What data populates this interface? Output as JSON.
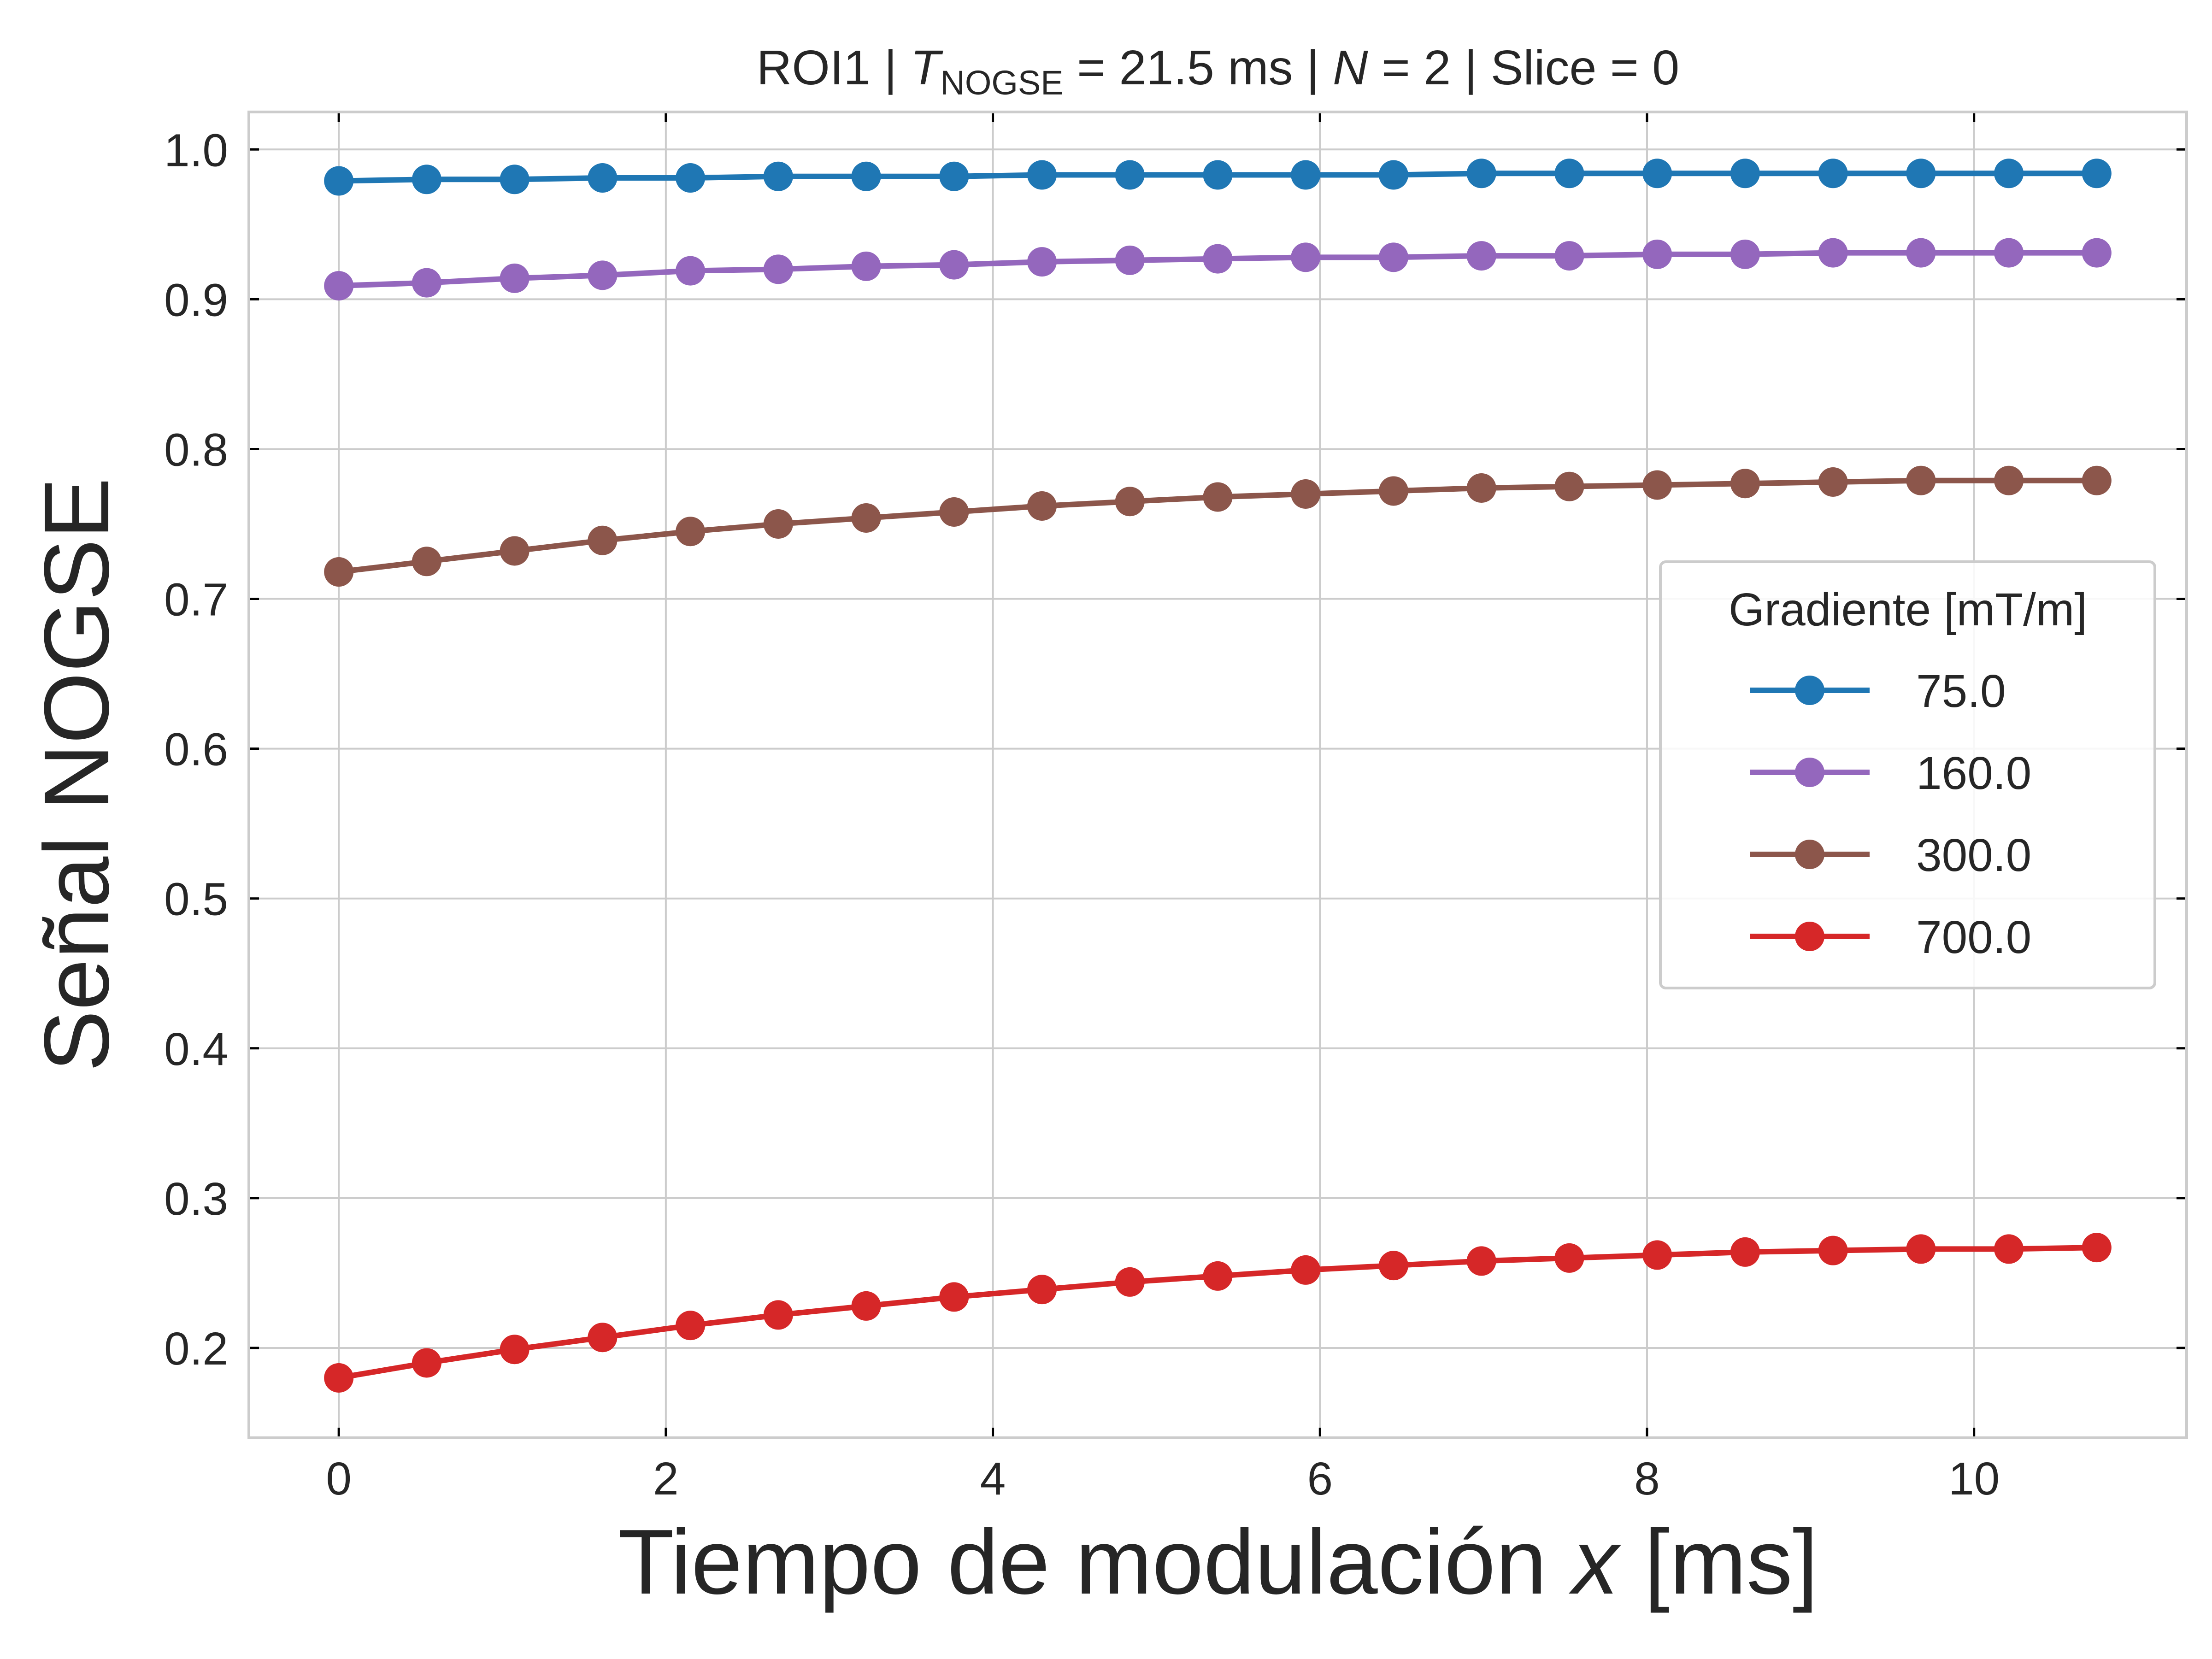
{
  "chart_data": {
    "type": "line",
    "title": {
      "prefix": "ROI1 | ",
      "t_symbol": "T",
      "t_subscript": "NOGSE",
      "t_value": " = 21.5 ms | ",
      "n_symbol": "N",
      "n_value": " = 2 | Slice = 0"
    },
    "xlabel": {
      "text": "Tiempo de modulación ",
      "var": "x",
      "unit": " [ms]"
    },
    "ylabel": "Señal NOGSE",
    "xlim": [
      -0.55,
      11.3
    ],
    "ylim": [
      0.14,
      1.025
    ],
    "xticks": [
      0,
      2,
      4,
      6,
      8,
      10
    ],
    "yticks": [
      0.2,
      0.3,
      0.4,
      0.5,
      0.6,
      0.7,
      0.8,
      0.9,
      1.0
    ],
    "ytick_labels": [
      "0.2",
      "0.3",
      "0.4",
      "0.5",
      "0.6",
      "0.7",
      "0.8",
      "0.9",
      "1.0"
    ],
    "grid": true,
    "legend": {
      "title": "Gradiente [mT/m]",
      "position": "center-right"
    },
    "x": [
      0,
      0.5375,
      1.075,
      1.6125,
      2.15,
      2.6875,
      3.225,
      3.7625,
      4.3,
      4.8375,
      5.375,
      5.9125,
      6.45,
      6.9875,
      7.525,
      8.0625,
      8.6,
      9.1375,
      9.675,
      10.2125,
      10.75
    ],
    "series": [
      {
        "name": "75.0",
        "color": "#1f77b4",
        "values": [
          0.979,
          0.98,
          0.98,
          0.981,
          0.981,
          0.982,
          0.982,
          0.982,
          0.983,
          0.983,
          0.983,
          0.983,
          0.983,
          0.984,
          0.984,
          0.984,
          0.984,
          0.984,
          0.984,
          0.984,
          0.984
        ]
      },
      {
        "name": "160.0",
        "color": "#9467bd",
        "values": [
          0.909,
          0.911,
          0.914,
          0.916,
          0.919,
          0.92,
          0.922,
          0.923,
          0.925,
          0.926,
          0.927,
          0.928,
          0.928,
          0.929,
          0.929,
          0.93,
          0.93,
          0.931,
          0.931,
          0.931,
          0.931
        ]
      },
      {
        "name": "300.0",
        "color": "#8c564b",
        "values": [
          0.718,
          0.725,
          0.732,
          0.739,
          0.745,
          0.75,
          0.754,
          0.758,
          0.762,
          0.765,
          0.768,
          0.77,
          0.772,
          0.774,
          0.775,
          0.776,
          0.777,
          0.778,
          0.779,
          0.779,
          0.779
        ]
      },
      {
        "name": "700.0",
        "color": "#d62728",
        "values": [
          0.18,
          0.19,
          0.199,
          0.207,
          0.215,
          0.222,
          0.228,
          0.234,
          0.239,
          0.244,
          0.248,
          0.252,
          0.255,
          0.258,
          0.26,
          0.262,
          0.264,
          0.265,
          0.266,
          0.266,
          0.267
        ]
      }
    ]
  }
}
